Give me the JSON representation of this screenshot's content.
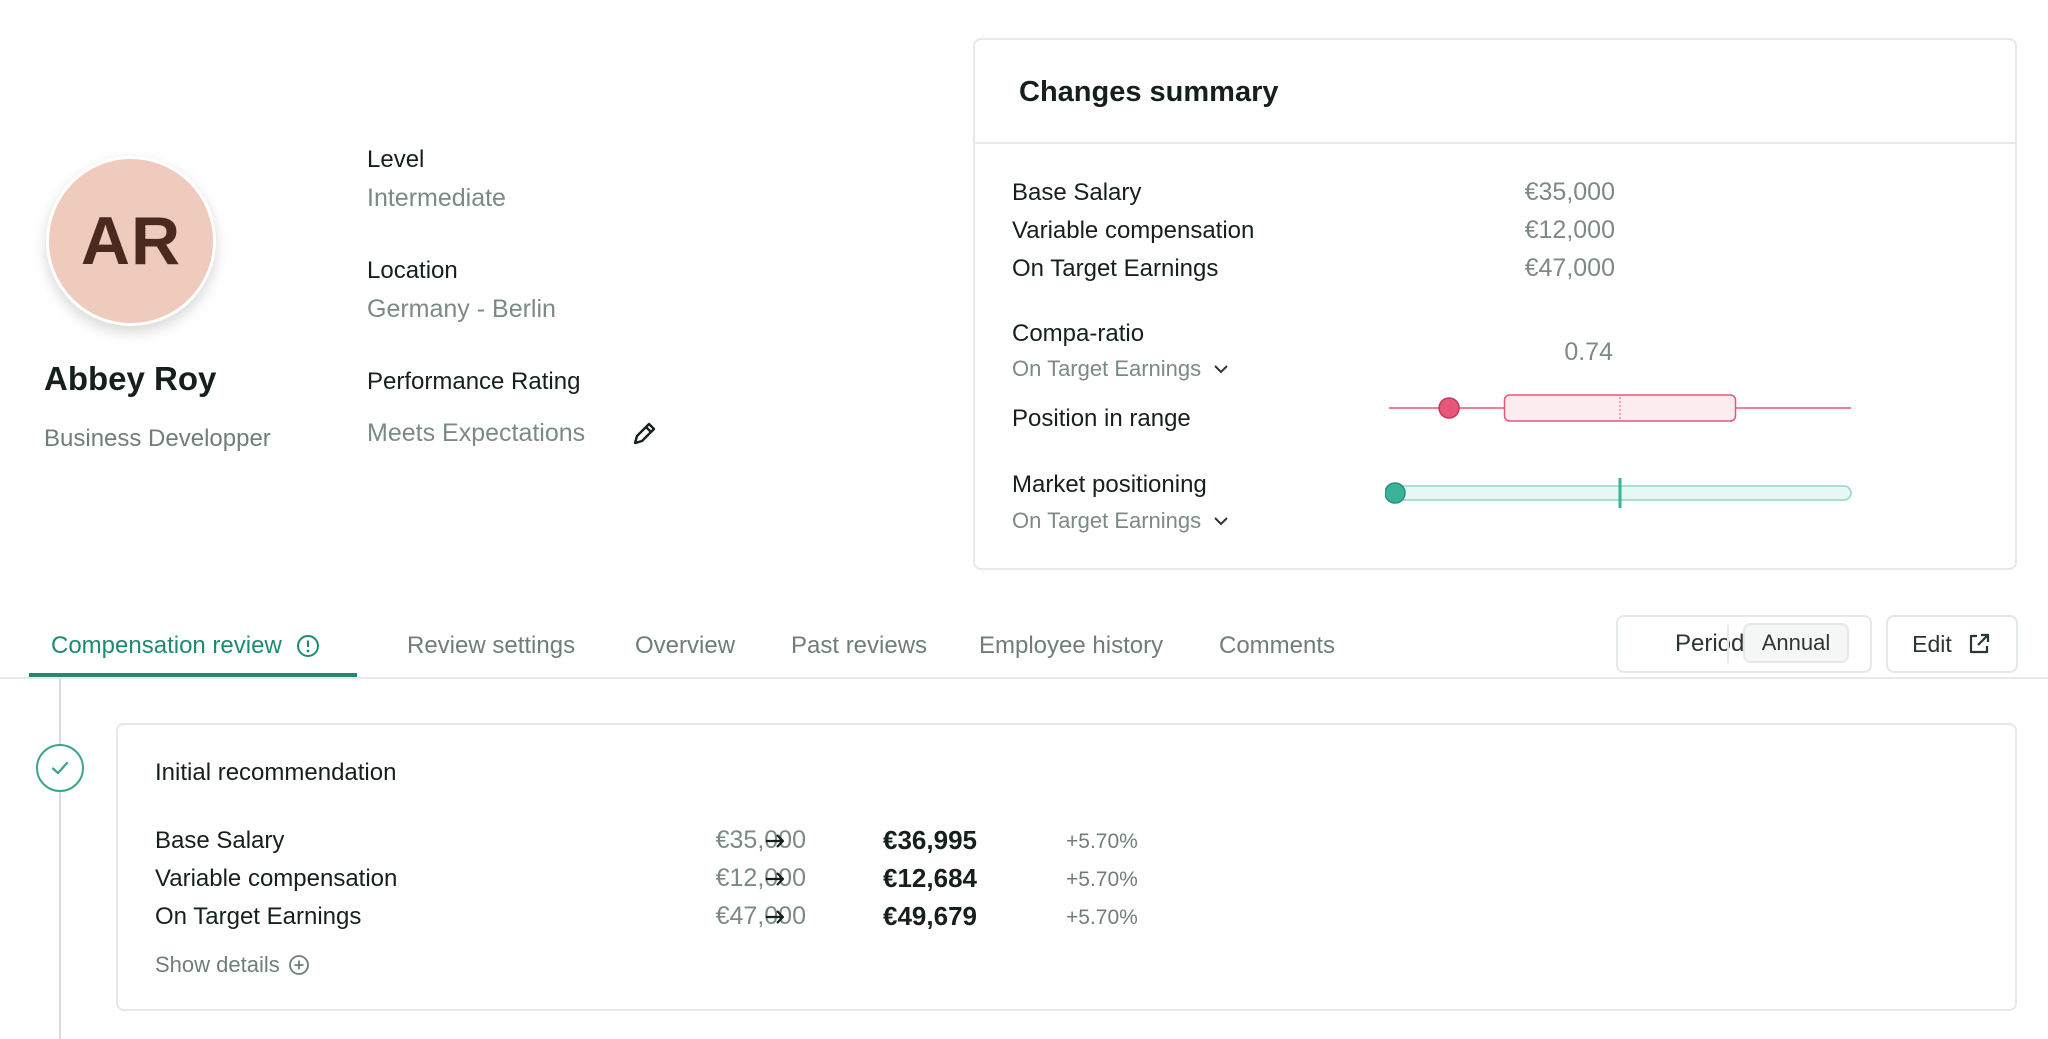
{
  "employee": {
    "initials": "AR",
    "name": "Abbey Roy",
    "role": "Business Developper",
    "avatar_color": "#efcbbd"
  },
  "attributes": {
    "level_label": "Level",
    "level_value": "Intermediate",
    "location_label": "Location",
    "location_value": "Germany - Berlin",
    "performance_label": "Performance Rating",
    "performance_value": "Meets Expectations",
    "edit_icon": "pencil-icon"
  },
  "summary": {
    "title": "Changes summary",
    "rows": [
      {
        "label": "Base Salary",
        "value": "€35,000"
      },
      {
        "label": "Variable compensation",
        "value": "€12,000"
      },
      {
        "label": "On Target Earnings",
        "value": "€47,000"
      }
    ],
    "compa_ratio": {
      "label": "Compa-ratio",
      "selector": "On Target Earnings",
      "value": "0.74"
    },
    "position_in_range": {
      "label": "Position in range",
      "marker_fraction": 0.13,
      "box_start_fraction": 0.25,
      "box_end_fraction": 0.75,
      "median_fraction": 0.5,
      "color": "#e8557a"
    },
    "market_positioning": {
      "label": "Market positioning",
      "selector": "On Target Earnings",
      "marker_fraction": 0.0,
      "median_fraction": 0.5,
      "color": "#3ab39b"
    }
  },
  "tabs": [
    {
      "label": "Compensation review",
      "active": true,
      "alert_icon": "info-alert-icon"
    },
    {
      "label": "Review settings",
      "active": false
    },
    {
      "label": "Overview",
      "active": false
    },
    {
      "label": "Past reviews",
      "active": false
    },
    {
      "label": "Employee history",
      "active": false
    },
    {
      "label": "Comments",
      "active": false
    }
  ],
  "period": {
    "label": "Period",
    "value": "Annual"
  },
  "edit": {
    "label": "Edit",
    "icon": "external-link-icon"
  },
  "recommendation": {
    "title": "Initial recommendation",
    "rows": [
      {
        "label": "Base Salary",
        "old": "€35,000",
        "new": "€36,995",
        "change": "+5.70%"
      },
      {
        "label": "Variable compensation",
        "old": "€12,000",
        "new": "€12,684",
        "change": "+5.70%"
      },
      {
        "label": "On Target Earnings",
        "old": "€47,000",
        "new": "€49,679",
        "change": "+5.70%"
      }
    ],
    "show_details": "Show details"
  },
  "colors": {
    "accent": "#1f8a74",
    "range_pink": "#e8557a",
    "market_teal": "#3ab39b"
  }
}
